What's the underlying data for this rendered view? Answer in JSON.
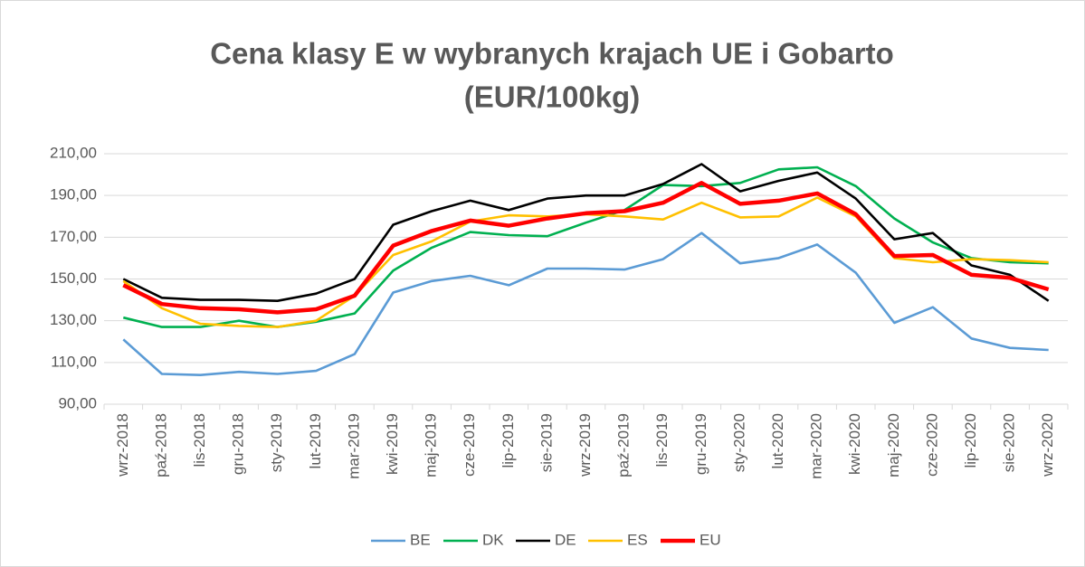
{
  "chart_data": {
    "type": "line",
    "title": "Cena klasy E w wybranych krajach UE i Gobarto",
    "subtitle": "(EUR/100kg)",
    "categories": [
      "wrz-2018",
      "paź-2018",
      "lis-2018",
      "gru-2018",
      "sty-2019",
      "lut-2019",
      "mar-2019",
      "kwi-2019",
      "maj-2019",
      "cze-2019",
      "lip-2019",
      "sie-2019",
      "wrz-2019",
      "paź-2019",
      "lis-2019",
      "gru-2019",
      "sty-2020",
      "lut-2020",
      "mar-2020",
      "kwi-2020",
      "maj-2020",
      "cze-2020",
      "lip-2020",
      "sie-2020",
      "wrz-2020"
    ],
    "series": [
      {
        "name": "BE",
        "color": "#5b9bd5",
        "values": [
          121,
          104.5,
          104,
          105.5,
          104.5,
          106,
          114,
          143.5,
          149,
          151.5,
          147,
          155,
          155,
          154.5,
          159.5,
          172,
          157.5,
          160,
          166.5,
          153,
          129,
          136.5,
          121.5,
          117,
          116
        ]
      },
      {
        "name": "DK",
        "color": "#00b050",
        "values": [
          131.5,
          127,
          127,
          130,
          127,
          129.5,
          133.5,
          154,
          165,
          172.5,
          171,
          170.5,
          177,
          183,
          195,
          194.5,
          196,
          202.5,
          203.5,
          194.5,
          179,
          167.5,
          160,
          158,
          157.5
        ]
      },
      {
        "name": "DE",
        "color": "#000000",
        "values": [
          150,
          141,
          140,
          140,
          139.5,
          143,
          150,
          176,
          182.5,
          187.5,
          183,
          188.5,
          190,
          190,
          195.5,
          205,
          192,
          197,
          201,
          188.5,
          169,
          172,
          156.5,
          152,
          139.5
        ]
      },
      {
        "name": "ES",
        "color": "#ffc000",
        "values": [
          149,
          136,
          128.5,
          127.5,
          127,
          130,
          142,
          161.5,
          168,
          177.5,
          180.5,
          180,
          181,
          180,
          178.5,
          186.5,
          179.5,
          180,
          189,
          180,
          160,
          158,
          159.5,
          159,
          158
        ]
      },
      {
        "name": "EU",
        "color": "#ff0000",
        "values": [
          147,
          138,
          136,
          135.5,
          134,
          135.5,
          142,
          166,
          173,
          178,
          175.5,
          179,
          181.5,
          182.5,
          186.5,
          196,
          186,
          187.5,
          191,
          181,
          161,
          161.5,
          152,
          150.5,
          145
        ]
      }
    ],
    "ylim": [
      90,
      210
    ],
    "yticks": [
      {
        "value": 90,
        "label": "90,00"
      },
      {
        "value": 110,
        "label": "110,00"
      },
      {
        "value": 130,
        "label": "130,00"
      },
      {
        "value": 150,
        "label": "150,00"
      },
      {
        "value": 170,
        "label": "170,00"
      },
      {
        "value": 190,
        "label": "190,00"
      },
      {
        "value": 210,
        "label": "210,00"
      }
    ],
    "grid": true,
    "legend": "bottom"
  }
}
